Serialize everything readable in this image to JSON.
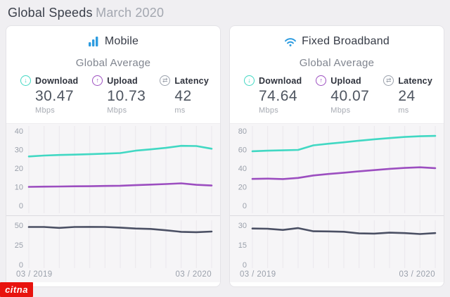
{
  "page": {
    "title": "Global Speeds",
    "subtitle": "March 2020"
  },
  "watermark": {
    "label": "citna",
    "color": "#e8130e"
  },
  "colors": {
    "download": "#41d8c3",
    "upload": "#9c4ec0",
    "latency_line": "#4b5064",
    "brand_blue": "#2e9ce0",
    "axis_text": "#9aa0ab",
    "gridline": "#eae8ec"
  },
  "panels": [
    {
      "id": "mobile",
      "title": "Mobile",
      "icon": "signal-bars-icon",
      "icon_color": "#2e9ce0",
      "section_title": "Global Average",
      "metrics": [
        {
          "label": "Download",
          "value": "30.47",
          "unit": "Mbps",
          "icon": "download-arrow-icon",
          "color": "#41d8c3",
          "glyph": "↓"
        },
        {
          "label": "Upload",
          "value": "10.73",
          "unit": "Mbps",
          "icon": "upload-arrow-icon",
          "color": "#9c4ec0",
          "glyph": "↑"
        },
        {
          "label": "Latency",
          "value": "42",
          "unit": "ms",
          "icon": "latency-icon",
          "color": "#9aa0ab",
          "glyph": "⇄"
        }
      ],
      "x_start": "03 / 2019",
      "x_end": "03 / 2020"
    },
    {
      "id": "fixed-broadband",
      "title": "Fixed Broadband",
      "icon": "wifi-icon",
      "icon_color": "#2e9ce0",
      "section_title": "Global Average",
      "metrics": [
        {
          "label": "Download",
          "value": "74.64",
          "unit": "Mbps",
          "icon": "download-arrow-icon",
          "color": "#41d8c3",
          "glyph": "↓"
        },
        {
          "label": "Upload",
          "value": "40.07",
          "unit": "Mbps",
          "icon": "upload-arrow-icon",
          "color": "#9c4ec0",
          "glyph": "↑"
        },
        {
          "label": "Latency",
          "value": "24",
          "unit": "ms",
          "icon": "latency-icon",
          "color": "#9aa0ab",
          "glyph": "⇄"
        }
      ],
      "x_start": "03 / 2019",
      "x_end": "03 / 2020"
    }
  ],
  "chart_data": [
    {
      "type": "line",
      "panel": "mobile",
      "title": "Mobile speeds, monthly global average (Mbps)",
      "x_labels": [
        "03 / 2019",
        "03 / 2020"
      ],
      "ylim": [
        0,
        40
      ],
      "yticks": [
        40,
        30,
        20,
        10,
        0
      ],
      "grid": true,
      "series": [
        {
          "name": "Download Mbps",
          "color": "#41d8c3",
          "values": [
            26.3,
            26.8,
            27.1,
            27.3,
            27.5,
            27.8,
            28.1,
            29.4,
            30.1,
            30.9,
            32.0,
            31.9,
            30.47
          ]
        },
        {
          "name": "Upload Mbps",
          "color": "#9c4ec0",
          "values": [
            10.0,
            10.1,
            10.2,
            10.3,
            10.35,
            10.5,
            10.6,
            10.9,
            11.2,
            11.5,
            11.9,
            11.1,
            10.73
          ]
        }
      ]
    },
    {
      "type": "line",
      "panel": "mobile",
      "title": "Mobile latency, monthly global average (ms)",
      "x_labels": [
        "03 / 2019",
        "03 / 2020"
      ],
      "ylim": [
        0,
        50
      ],
      "yticks": [
        50,
        25,
        0
      ],
      "grid": true,
      "series": [
        {
          "name": "Latency ms",
          "color": "#4b5064",
          "values": [
            47.8,
            47.8,
            46.6,
            47.8,
            47.9,
            47.8,
            47.0,
            45.8,
            45.3,
            43.6,
            41.6,
            41.2,
            42
          ]
        }
      ]
    },
    {
      "type": "line",
      "panel": "fixed-broadband",
      "title": "Fixed broadband speeds, monthly global average (Mbps)",
      "x_labels": [
        "03 / 2019",
        "03 / 2020"
      ],
      "ylim": [
        0,
        80
      ],
      "yticks": [
        80,
        60,
        40,
        20,
        0
      ],
      "grid": true,
      "series": [
        {
          "name": "Download Mbps",
          "color": "#41d8c3",
          "values": [
            58.2,
            58.8,
            59.2,
            59.6,
            64.5,
            66.3,
            67.8,
            69.5,
            71.0,
            72.3,
            73.5,
            74.3,
            74.64
          ]
        },
        {
          "name": "Upload Mbps",
          "color": "#9c4ec0",
          "values": [
            28.5,
            28.8,
            28.4,
            29.6,
            32.2,
            33.8,
            35.2,
            36.7,
            38.0,
            39.3,
            40.3,
            41.0,
            40.07
          ]
        }
      ]
    },
    {
      "type": "line",
      "panel": "fixed-broadband",
      "title": "Fixed broadband latency, monthly global average (ms)",
      "x_labels": [
        "03 / 2019",
        "03 / 2020"
      ],
      "ylim": [
        0,
        30
      ],
      "yticks": [
        30,
        15,
        0
      ],
      "grid": true,
      "series": [
        {
          "name": "Latency ms",
          "color": "#4b5064",
          "values": [
            27.5,
            27.3,
            26.4,
            27.8,
            25.4,
            25.3,
            25.0,
            23.8,
            23.6,
            24.3,
            24.0,
            23.3,
            24
          ]
        }
      ]
    }
  ]
}
